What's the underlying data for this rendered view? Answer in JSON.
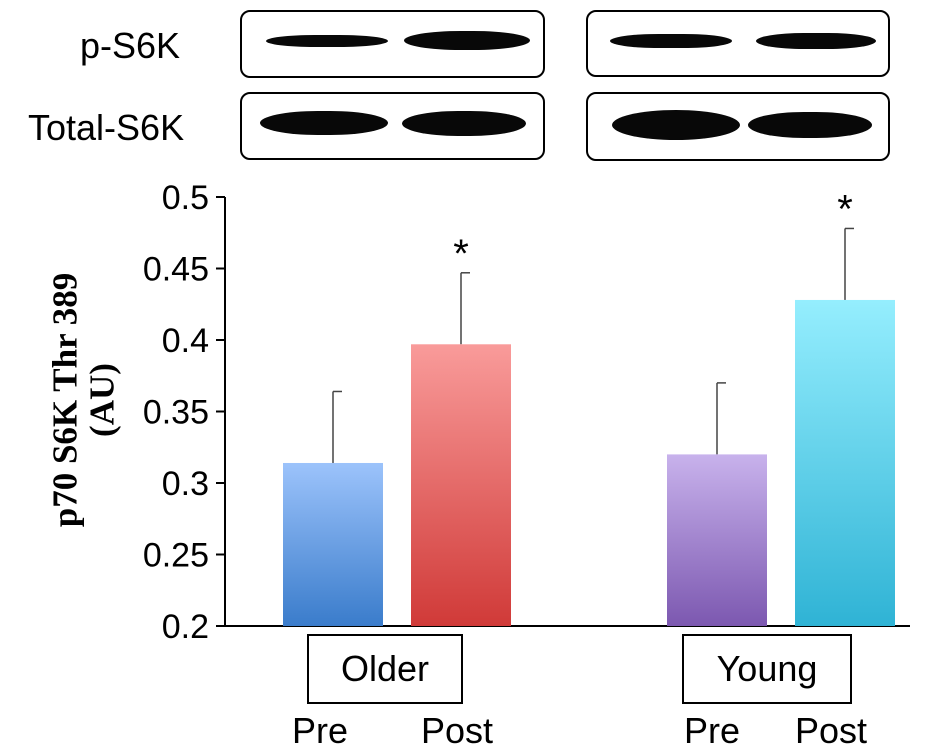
{
  "blots": {
    "row_labels": [
      "p-S6K",
      "Total-S6K"
    ]
  },
  "chart_data": {
    "type": "bar",
    "ylabel": [
      "p70 S6K Thr 389",
      "(AU)"
    ],
    "ylim": [
      0.2,
      0.5
    ],
    "yticks": [
      "0.2",
      "0.25",
      "0.3",
      "0.35",
      "0.4",
      "0.45",
      "0.5"
    ],
    "groups": [
      {
        "name": "Older",
        "bars": [
          {
            "label": "Pre",
            "value": 0.314,
            "error": 0.05,
            "annotation": "",
            "color_top": "#9cc3fb",
            "color_bottom": "#3a7ccb"
          },
          {
            "label": "Post",
            "value": 0.397,
            "error": 0.05,
            "annotation": "*",
            "color_top": "#f99b9a",
            "color_bottom": "#d03a38"
          }
        ]
      },
      {
        "name": "Young",
        "bars": [
          {
            "label": "Pre",
            "value": 0.32,
            "error": 0.05,
            "annotation": "",
            "color_top": "#c8b2ec",
            "color_bottom": "#7c58b0"
          },
          {
            "label": "Post",
            "value": 0.428,
            "error": 0.05,
            "annotation": "*",
            "color_top": "#95eefe",
            "color_bottom": "#2fb3d5"
          }
        ]
      }
    ],
    "grid": false,
    "legend": "none"
  }
}
